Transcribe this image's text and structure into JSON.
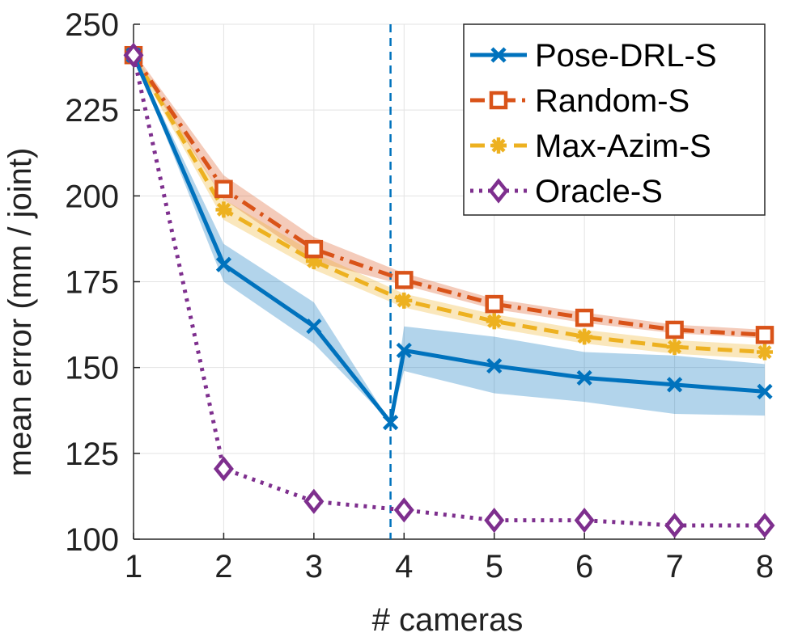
{
  "chart_data": {
    "type": "line",
    "xlabel": "# cameras",
    "ylabel": "mean error (mm / joint)",
    "xlim": [
      1,
      8
    ],
    "ylim": [
      100,
      250
    ],
    "xticks": [
      1,
      2,
      3,
      4,
      5,
      6,
      7,
      8
    ],
    "yticks": [
      100,
      125,
      150,
      175,
      200,
      225,
      250
    ],
    "grid": true,
    "legend_position": "top-right",
    "vertical_reference_line": {
      "x": 3.85,
      "style": "dashed",
      "color": "#0072BD"
    },
    "series": [
      {
        "name": "Pose-DRL-S",
        "color": "#0072BD",
        "line_style": "solid",
        "marker": "x",
        "x": [
          1,
          2,
          3,
          3.85,
          4,
          5,
          6,
          7,
          8
        ],
        "values": [
          241,
          180,
          162,
          134,
          155,
          150.5,
          147,
          145,
          143
        ],
        "band_lower": [
          241,
          175,
          157,
          134,
          149,
          142.5,
          140,
          136.5,
          136
        ],
        "band_upper": [
          241,
          186,
          169,
          134,
          162,
          159,
          154.5,
          153.5,
          151
        ]
      },
      {
        "name": "Random-S",
        "color": "#D95319",
        "line_style": "dashdot",
        "marker": "square",
        "x": [
          1,
          2,
          3,
          4,
          5,
          6,
          7,
          8
        ],
        "values": [
          241,
          202,
          184.5,
          175.5,
          168.5,
          164.5,
          161,
          159.5
        ],
        "band_lower": [
          240,
          199,
          181,
          174,
          167,
          163,
          160,
          158.5
        ],
        "band_upper": [
          242,
          206,
          188,
          177.5,
          170,
          166,
          162.5,
          161
        ]
      },
      {
        "name": "Max-Azim-S",
        "color": "#EDB120",
        "line_style": "dashed",
        "marker": "asterisk",
        "x": [
          1,
          2,
          3,
          4,
          5,
          6,
          7,
          8
        ],
        "values": [
          241,
          196,
          181,
          169.5,
          163.5,
          159,
          156,
          154.5
        ],
        "band_lower": [
          240,
          193,
          178.5,
          167.5,
          161.5,
          157,
          154,
          152.5
        ],
        "band_upper": [
          242,
          199,
          183.5,
          171.5,
          165.5,
          161,
          158,
          156.5
        ]
      },
      {
        "name": "Oracle-S",
        "color": "#7E2F8E",
        "line_style": "dotted",
        "marker": "diamond",
        "x": [
          1,
          2,
          3,
          4,
          5,
          6,
          7,
          8
        ],
        "values": [
          241,
          120.5,
          111,
          108.5,
          105.5,
          105.5,
          104,
          104
        ]
      }
    ]
  }
}
